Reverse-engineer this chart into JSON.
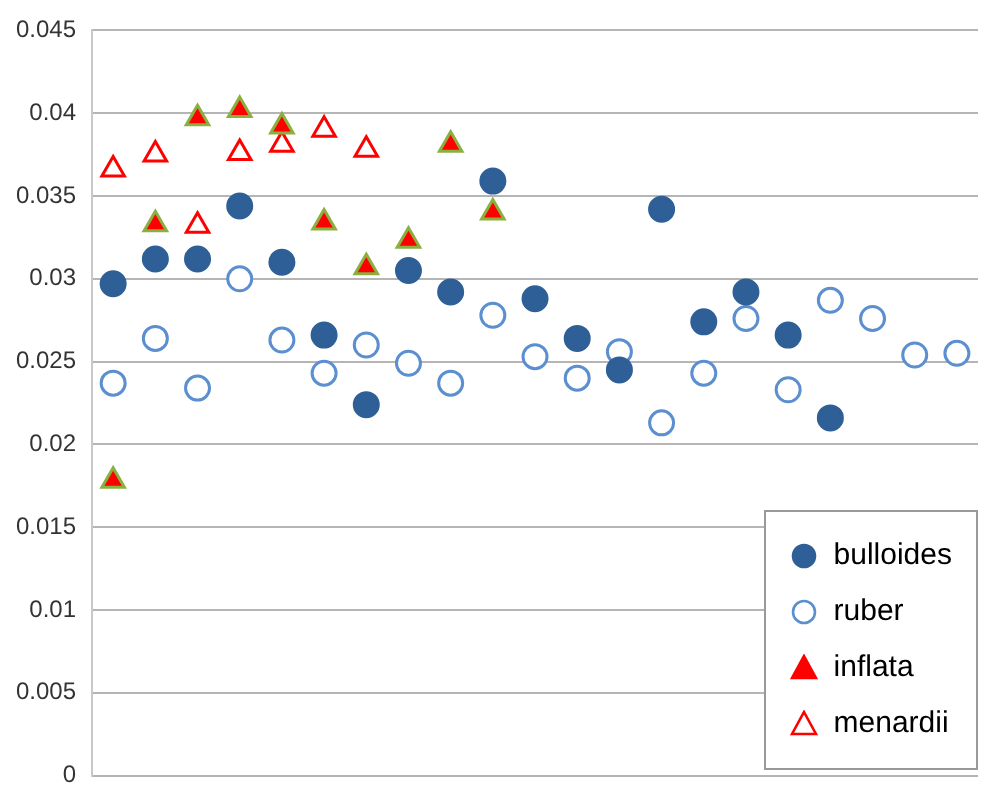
{
  "chart_data": {
    "type": "scatter",
    "categories": [
      null,
      null,
      null,
      null,
      null,
      null,
      null,
      null,
      null,
      null,
      null,
      null,
      null,
      null,
      null,
      null,
      null,
      null,
      null,
      null,
      null
    ],
    "ylim": [
      0,
      0.045
    ],
    "yticks": [
      0,
      0.005,
      0.01,
      0.015,
      0.02,
      0.025,
      0.03,
      0.035,
      0.04,
      0.045
    ],
    "grid": "y",
    "legend": "bottom right",
    "tick_labels": "y",
    "series": [
      {
        "name": "bulloides",
        "color": "#2e5f96",
        "marker": "circle",
        "values": [
          0.0297,
          0.0312,
          0.0312,
          0.0344,
          0.031,
          0.0266,
          0.0224,
          0.0305,
          0.0292,
          0.0359,
          0.0288,
          0.0264,
          0.0245,
          0.0342,
          0.0274,
          0.0292,
          0.0266,
          0.0216,
          null,
          null,
          null
        ]
      },
      {
        "name": "ruber",
        "color": "#5b8fd0",
        "marker": "circle",
        "values": [
          0.0237,
          0.0264,
          0.0234,
          0.03,
          0.0263,
          0.0243,
          0.026,
          0.0249,
          0.0237,
          0.0278,
          0.0253,
          0.024,
          0.0256,
          0.0213,
          0.0243,
          0.0276,
          0.0233,
          0.0287,
          0.0276,
          0.0254,
          0.0255
        ]
      },
      {
        "name": "inflata",
        "color": "#ff0000",
        "marker": "triangle",
        "values": [
          0.0178,
          0.0333,
          0.0397,
          0.0402,
          0.0392,
          0.0334,
          0.0307,
          0.0323,
          0.0381,
          0.034,
          null,
          null,
          null,
          null,
          null,
          null,
          null,
          null,
          null,
          null,
          null
        ]
      },
      {
        "name": "menardii",
        "color": "#ff0000",
        "marker": "triangle",
        "values": [
          0.0366,
          0.0375,
          0.0332,
          0.0376,
          0.0381,
          0.039,
          0.0378,
          null,
          null,
          null,
          null,
          null,
          null,
          null,
          null,
          null,
          null,
          null,
          null,
          null,
          null
        ]
      }
    ]
  }
}
